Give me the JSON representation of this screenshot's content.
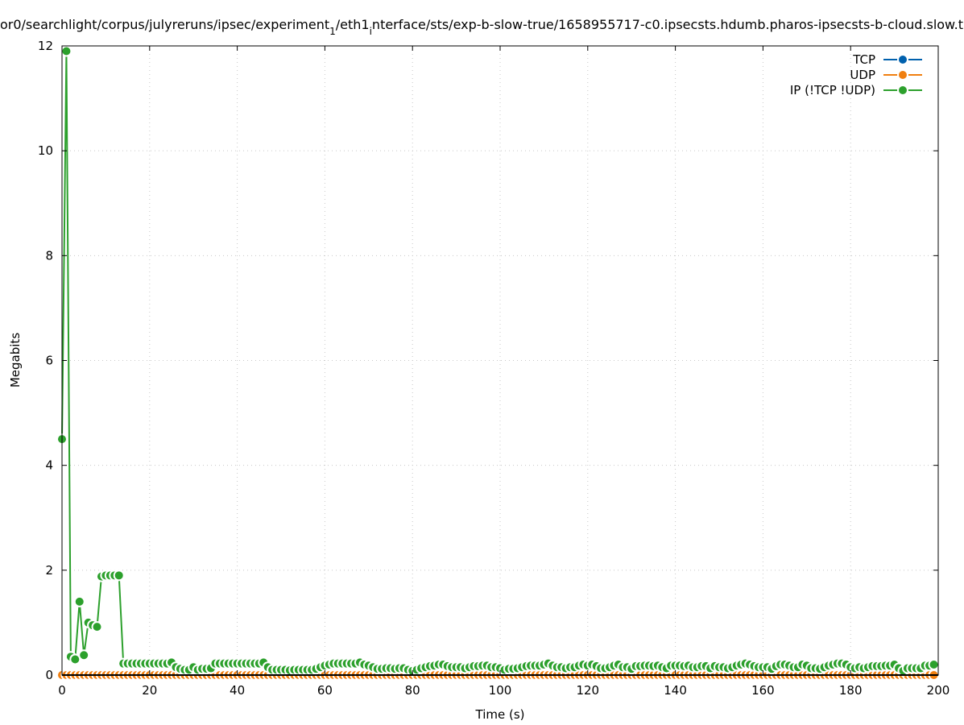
{
  "chart_data": {
    "type": "line",
    "title_parts": [
      {
        "text": "or0/searchlight/corpus/julyreruns/ipsec/experiment",
        "sub": false
      },
      {
        "text": "1",
        "sub": true
      },
      {
        "text": "/eth1",
        "sub": false
      },
      {
        "text": "i",
        "sub": true
      },
      {
        "text": "nterface/sts/exp-b-slow-true/1658955717-c0.ipsecsts.hdumb.pharos-ipsecsts-b-cloud.slow.t",
        "sub": false
      }
    ],
    "xlabel": "Time (s)",
    "ylabel": "Megabits",
    "xlim": [
      0,
      200
    ],
    "ylim": [
      0,
      12
    ],
    "xticks": [
      0,
      20,
      40,
      60,
      80,
      100,
      120,
      140,
      160,
      180,
      200
    ],
    "yticks": [
      0,
      2,
      4,
      6,
      8,
      10,
      12
    ],
    "grid": true,
    "legend_position": "top-right",
    "series": [
      {
        "name": "TCP",
        "color": "#0060ad",
        "values": "zeros"
      },
      {
        "name": "UDP",
        "color": "#f07f10",
        "values": "zeros"
      },
      {
        "name": "IP (!TCP  !UDP)",
        "color": "#2ca02c",
        "values": [
          4.5,
          11.9,
          0.35,
          0.3,
          1.4,
          0.38,
          1.0,
          0.95,
          0.92,
          1.88,
          1.9,
          1.9,
          1.9,
          1.9,
          0.22,
          0.22,
          0.22,
          0.22,
          0.22,
          0.22,
          0.22,
          0.22,
          0.22,
          0.22,
          0.22,
          0.24,
          0.15,
          0.12,
          0.1,
          0.1,
          0.15,
          0.1,
          0.12,
          0.12,
          0.13,
          0.22,
          0.22,
          0.22,
          0.22,
          0.22,
          0.22,
          0.22,
          0.22,
          0.22,
          0.22,
          0.22,
          0.24,
          0.15,
          0.1,
          0.1,
          0.1,
          0.1,
          0.09,
          0.1,
          0.1,
          0.1,
          0.1,
          0.1,
          0.12,
          0.15,
          0.18,
          0.2,
          0.22,
          0.22,
          0.22,
          0.22,
          0.22,
          0.22,
          0.24,
          0.2,
          0.18,
          0.15,
          0.12,
          0.12,
          0.13,
          0.13,
          0.12,
          0.13,
          0.13,
          0.1,
          0.08,
          0.1,
          0.13,
          0.15,
          0.17,
          0.18,
          0.2,
          0.2,
          0.17,
          0.15,
          0.15,
          0.15,
          0.13,
          0.15,
          0.17,
          0.17,
          0.18,
          0.18,
          0.15,
          0.15,
          0.13,
          0.1,
          0.12,
          0.12,
          0.13,
          0.15,
          0.17,
          0.18,
          0.18,
          0.18,
          0.2,
          0.22,
          0.18,
          0.15,
          0.15,
          0.13,
          0.15,
          0.15,
          0.18,
          0.2,
          0.18,
          0.2,
          0.17,
          0.13,
          0.13,
          0.15,
          0.18,
          0.2,
          0.15,
          0.15,
          0.12,
          0.17,
          0.17,
          0.18,
          0.18,
          0.17,
          0.18,
          0.15,
          0.13,
          0.18,
          0.18,
          0.18,
          0.17,
          0.18,
          0.15,
          0.15,
          0.17,
          0.17,
          0.13,
          0.17,
          0.15,
          0.15,
          0.13,
          0.15,
          0.18,
          0.2,
          0.22,
          0.2,
          0.17,
          0.15,
          0.15,
          0.15,
          0.12,
          0.17,
          0.2,
          0.2,
          0.18,
          0.15,
          0.15,
          0.2,
          0.18,
          0.13,
          0.13,
          0.12,
          0.15,
          0.18,
          0.2,
          0.22,
          0.22,
          0.2,
          0.15,
          0.13,
          0.15,
          0.13,
          0.15,
          0.17,
          0.17,
          0.17,
          0.18,
          0.18,
          0.2,
          0.13,
          0.08,
          0.13,
          0.13,
          0.13,
          0.13,
          0.18,
          0.18,
          0.2
        ]
      }
    ]
  }
}
